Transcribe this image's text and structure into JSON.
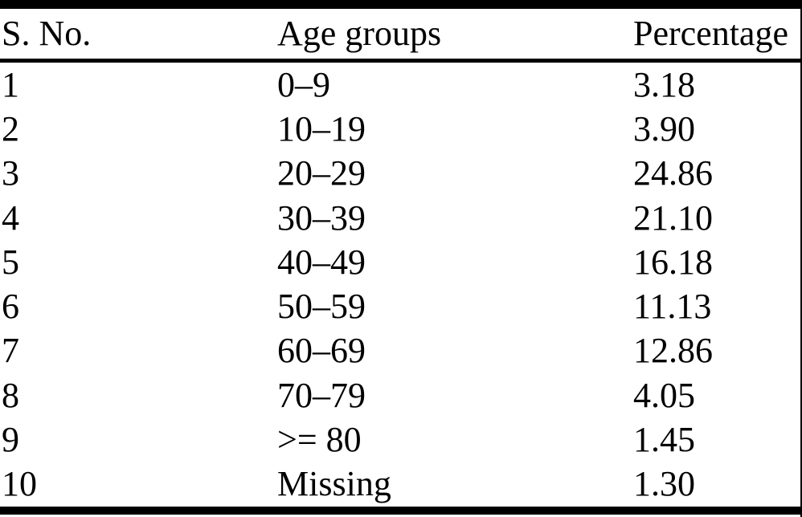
{
  "table": {
    "columns": {
      "sno": "S. No.",
      "age_group": "Age groups",
      "percentage": "Percentage"
    },
    "rows": [
      {
        "sno": "1",
        "age_group": "0–9",
        "percentage": "3.18"
      },
      {
        "sno": "2",
        "age_group": "10–19",
        "percentage": "3.90"
      },
      {
        "sno": "3",
        "age_group": "20–29",
        "percentage": "24.86"
      },
      {
        "sno": "4",
        "age_group": "30–39",
        "percentage": "21.10"
      },
      {
        "sno": "5",
        "age_group": "40–49",
        "percentage": "16.18"
      },
      {
        "sno": "6",
        "age_group": "50–59",
        "percentage": "11.13"
      },
      {
        "sno": "7",
        "age_group": "60–69",
        "percentage": "12.86"
      },
      {
        "sno": "8",
        "age_group": "70–79",
        "percentage": "4.05"
      },
      {
        "sno": "9",
        "age_group": ">= 80",
        "percentage": "1.45"
      },
      {
        "sno": "10",
        "age_group": "Missing",
        "percentage": "1.30"
      }
    ]
  },
  "colors": {
    "background": "#ffffff",
    "text": "#000000",
    "rule": "#000000"
  }
}
